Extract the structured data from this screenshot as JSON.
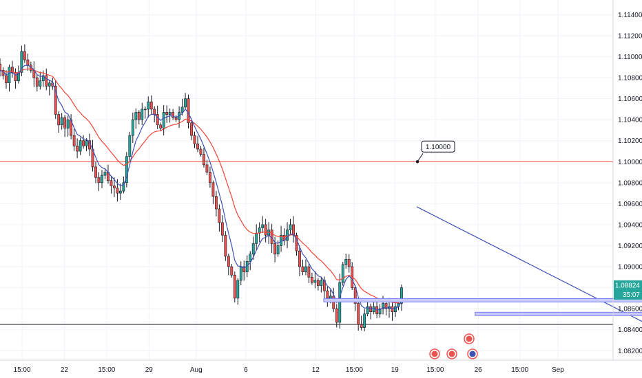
{
  "chart_data": {
    "type": "candlestick",
    "title": "",
    "y_ticks": [
      "1.11400",
      "1.11200",
      "1.11000",
      "1.10800",
      "1.10600",
      "1.10400",
      "1.10200",
      "1.10000",
      "1.09800",
      "1.09600",
      "1.09400",
      "1.09200",
      "1.09000",
      "1.08800",
      "1.08600",
      "1.08400",
      "1.08200"
    ],
    "y_tick_values": [
      1.114,
      1.112,
      1.11,
      1.108,
      1.106,
      1.104,
      1.102,
      1.1,
      1.098,
      1.096,
      1.094,
      1.092,
      1.09,
      1.088,
      1.086,
      1.084,
      1.082
    ],
    "ylim": [
      1.0811,
      1.1154
    ],
    "xlim": [
      0,
      100
    ],
    "x_ticks": [
      {
        "label": "15:00",
        "x": 3.6
      },
      {
        "label": "22",
        "x": 10.5
      },
      {
        "label": "15:00",
        "x": 17.4
      },
      {
        "label": "29",
        "x": 24.3
      },
      {
        "label": "Aug",
        "x": 32.0
      },
      {
        "label": "6",
        "x": 40.1
      },
      {
        "label": "12",
        "x": 51.5
      },
      {
        "label": "15:00",
        "x": 57.8
      },
      {
        "label": "19",
        "x": 64.4
      },
      {
        "label": "15:00",
        "x": 71.0
      },
      {
        "label": "26",
        "x": 78.0
      },
      {
        "label": "15:00",
        "x": 84.8
      },
      {
        "label": "Sep",
        "x": 91.0
      }
    ],
    "current_price": {
      "label": "1.08824",
      "value": 1.08824,
      "countdown": "35:07",
      "color": "#26a69a"
    },
    "price_line": {
      "label": "1.10000",
      "value": 1.1,
      "color": "#f44336"
    },
    "support_line": {
      "value": 1.0845,
      "color": "#131722"
    },
    "series": [
      {
        "name": "",
        "type": "ohlc",
        "up_color": "#26a69a",
        "down_color": "#ef5350",
        "closes": [
          1.1087,
          1.1082,
          1.1075,
          1.109,
          1.1085,
          1.1077,
          1.1085,
          1.1105,
          1.1097,
          1.1092,
          1.1087,
          1.108,
          1.1072,
          1.1077,
          1.1082,
          1.1072,
          1.1075,
          1.1072,
          1.1045,
          1.1035,
          1.1042,
          1.1032,
          1.104,
          1.1025,
          1.1015,
          1.101,
          1.102,
          1.1015,
          1.102,
          1.1012,
          1.0995,
          1.0985,
          1.098,
          1.0987,
          1.099,
          1.0982,
          1.0977,
          1.0975,
          1.097,
          1.0972,
          1.098,
          1.1005,
          1.1025,
          1.104,
          1.1047,
          1.104,
          1.105,
          1.105,
          1.1057,
          1.105,
          1.1045,
          1.1035,
          1.1032,
          1.1047,
          1.1045,
          1.1047,
          1.1042,
          1.104,
          1.1047,
          1.1052,
          1.106,
          1.1037,
          1.1025,
          1.1017,
          1.1012,
          1.1007,
          1.0997,
          1.099,
          1.098,
          1.0967,
          1.0955,
          1.0942,
          1.093,
          1.091,
          1.09,
          1.0892,
          1.087,
          1.0887,
          1.09,
          1.0895,
          1.0905,
          1.0912,
          1.0922,
          1.0932,
          1.0937,
          1.094,
          1.093,
          1.0935,
          1.0922,
          1.0912,
          1.092,
          1.093,
          1.0925,
          1.0935,
          1.094,
          1.093,
          1.0915,
          1.09,
          1.0895,
          1.09,
          1.089,
          1.0885,
          1.0887,
          1.0882,
          1.0887,
          1.0877,
          1.087,
          1.0872,
          1.086,
          1.0847,
          1.0885,
          1.0902,
          1.0907,
          1.09,
          1.088,
          1.0865,
          1.0845,
          1.0842,
          1.0855,
          1.0862,
          1.0857,
          1.0862,
          1.0855,
          1.086,
          1.0865,
          1.086,
          1.0862,
          1.0857,
          1.0862,
          1.0865,
          1.088
        ],
        "high_low_note": ""
      }
    ],
    "indicators": [
      {
        "name": "",
        "color": "#f44336"
      },
      {
        "name": "",
        "color": "#3f51b5"
      }
    ],
    "trendline": {
      "color": "#3f51b5",
      "from": [
        68.0,
        1.0957
      ],
      "to": [
        105.0,
        1.0847
      ]
    },
    "zones": [
      {
        "color": "#7b7ff0",
        "x0": 52.8,
        "x1": 110.0,
        "value": 1.0868
      },
      {
        "color": "#7b7ff0",
        "x0": 77.5,
        "x1": 106.5,
        "value": 1.0855
      }
    ],
    "grid": true,
    "axis_position": "right"
  }
}
